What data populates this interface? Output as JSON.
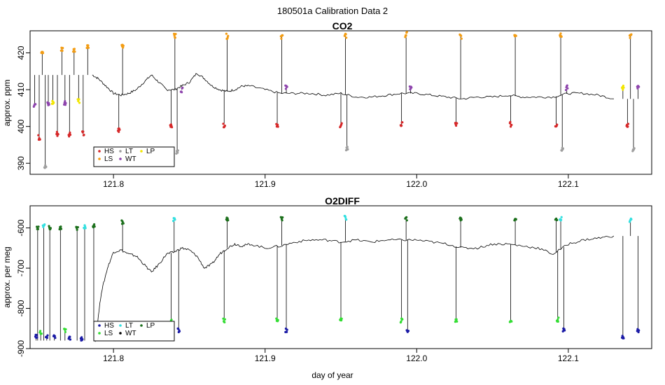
{
  "figure": {
    "title": "180501a   Calibration Data 2",
    "xlabel": "day of year"
  },
  "chart_data": [
    {
      "type": "line",
      "title": "CO2",
      "xlabel": "",
      "ylabel": "approx. ppm",
      "xlim": [
        121.745,
        122.155
      ],
      "ylim": [
        387,
        426
      ],
      "xticks": [
        121.8,
        121.9,
        122.0,
        122.1
      ],
      "yticks": [
        390,
        400,
        410,
        420
      ],
      "legend": {
        "placement": "bottom-left",
        "entries": [
          {
            "name": "HS",
            "color": "#d62728"
          },
          {
            "name": "LT",
            "color": "#9e9e9e"
          },
          {
            "name": "LP",
            "color": "#f2e600"
          },
          {
            "name": "LS",
            "color": "#f39c12"
          },
          {
            "name": "WT",
            "color": "#8e44ad"
          }
        ]
      },
      "baseline": {
        "x": [
          121.786,
          121.79,
          121.795,
          121.8,
          121.805,
          121.81,
          121.815,
          121.82,
          121.825,
          121.83,
          121.835,
          121.84,
          121.845,
          121.85,
          121.855,
          121.86,
          121.865,
          121.87,
          121.875,
          121.88,
          121.885,
          121.89,
          121.9,
          121.91,
          121.92,
          121.93,
          121.94,
          121.95,
          121.96,
          121.97,
          121.98,
          121.99,
          122.0,
          122.01,
          122.02,
          122.03,
          122.04,
          122.05,
          122.06,
          122.07,
          122.08,
          122.09,
          122.1,
          122.11,
          122.12,
          122.13
        ],
        "y": [
          414,
          413,
          411,
          409,
          408.5,
          409,
          410,
          412,
          414,
          412,
          410,
          410,
          411,
          412,
          414.5,
          413,
          411,
          410,
          409.5,
          410,
          411,
          411,
          410,
          409,
          409,
          409,
          408.5,
          409,
          408,
          408,
          408.5,
          409,
          409,
          408.5,
          408,
          407.5,
          408,
          408,
          408.5,
          408,
          408,
          408,
          409,
          409,
          408.5,
          407.5
        ]
      },
      "calibrations": [
        {
          "type": "WT",
          "x": 121.748,
          "y": 406
        },
        {
          "type": "HS",
          "x": 121.751,
          "y": 397
        },
        {
          "type": "LS",
          "x": 121.753,
          "y": 420.5
        },
        {
          "type": "LT",
          "x": 121.755,
          "y": 389
        },
        {
          "type": "WT",
          "x": 121.757,
          "y": 406
        },
        {
          "type": "LP",
          "x": 121.76,
          "y": 406.5
        },
        {
          "type": "HS",
          "x": 121.763,
          "y": 398
        },
        {
          "type": "LS",
          "x": 121.766,
          "y": 421
        },
        {
          "type": "WT",
          "x": 121.768,
          "y": 406.5
        },
        {
          "type": "HS",
          "x": 121.771,
          "y": 398
        },
        {
          "type": "LS",
          "x": 121.774,
          "y": 421
        },
        {
          "type": "LP",
          "x": 121.777,
          "y": 407
        },
        {
          "type": "HS",
          "x": 121.78,
          "y": 398
        },
        {
          "type": "LS",
          "x": 121.783,
          "y": 421.5
        },
        {
          "type": "HS",
          "x": 121.8035,
          "y": 399
        },
        {
          "type": "LS",
          "x": 121.806,
          "y": 422
        },
        {
          "type": "HS",
          "x": 121.838,
          "y": 400.5
        },
        {
          "type": "LS",
          "x": 121.8405,
          "y": 424.5
        },
        {
          "type": "LT",
          "x": 121.842,
          "y": 393
        },
        {
          "type": "WT",
          "x": 121.845,
          "y": 410
        },
        {
          "type": "HS",
          "x": 121.873,
          "y": 400.5
        },
        {
          "type": "LS",
          "x": 121.875,
          "y": 424.5
        },
        {
          "type": "HS",
          "x": 121.908,
          "y": 400.5
        },
        {
          "type": "LS",
          "x": 121.911,
          "y": 424.5
        },
        {
          "type": "WT",
          "x": 121.914,
          "y": 410.5
        },
        {
          "type": "HS",
          "x": 121.95,
          "y": 400.5
        },
        {
          "type": "LS",
          "x": 121.953,
          "y": 424.5
        },
        {
          "type": "LT",
          "x": 121.954,
          "y": 394
        },
        {
          "type": "HS",
          "x": 121.99,
          "y": 400.5
        },
        {
          "type": "LS",
          "x": 121.993,
          "y": 425
        },
        {
          "type": "WT",
          "x": 121.996,
          "y": 410.5
        },
        {
          "type": "HS",
          "x": 122.026,
          "y": 400.5
        },
        {
          "type": "LS",
          "x": 122.029,
          "y": 424.5
        },
        {
          "type": "HS",
          "x": 122.062,
          "y": 400.5
        },
        {
          "type": "LS",
          "x": 122.065,
          "y": 425
        },
        {
          "type": "HS",
          "x": 122.092,
          "y": 400.5
        },
        {
          "type": "LS",
          "x": 122.095,
          "y": 425
        },
        {
          "type": "LT",
          "x": 122.096,
          "y": 394
        },
        {
          "type": "WT",
          "x": 122.099,
          "y": 410.5
        },
        {
          "type": "LP",
          "x": 122.136,
          "y": 410.5
        },
        {
          "type": "HS",
          "x": 122.139,
          "y": 400.5
        },
        {
          "type": "LS",
          "x": 122.141,
          "y": 424.5
        },
        {
          "type": "LT",
          "x": 122.143,
          "y": 393.5
        },
        {
          "type": "WT",
          "x": 122.146,
          "y": 410.5
        }
      ]
    },
    {
      "type": "line",
      "title": "O2DIFF",
      "xlabel": "day of year",
      "ylabel": "approx. per meg",
      "xlim": [
        121.745,
        122.155
      ],
      "ylim": [
        -900,
        -545
      ],
      "xticks": [
        121.8,
        121.9,
        122.0,
        122.1
      ],
      "yticks": [
        -900,
        -800,
        -700,
        -600
      ],
      "legend": {
        "placement": "bottom-left",
        "entries": [
          {
            "name": "HS",
            "color": "#1a1aa6"
          },
          {
            "name": "LT",
            "color": "#33e0e0"
          },
          {
            "name": "LP",
            "color": "#1b6f1b"
          },
          {
            "name": "LS",
            "color": "#33dd33"
          },
          {
            "name": "WT",
            "color": "#000000"
          }
        ]
      },
      "baseline": {
        "x": [
          121.788,
          121.792,
          121.796,
          121.8,
          121.805,
          121.81,
          121.815,
          121.82,
          121.825,
          121.83,
          121.835,
          121.84,
          121.845,
          121.85,
          121.855,
          121.86,
          121.865,
          121.87,
          121.875,
          121.88,
          121.885,
          121.89,
          121.9,
          121.91,
          121.92,
          121.93,
          121.94,
          121.95,
          121.96,
          121.97,
          121.98,
          121.99,
          122.0,
          122.01,
          122.02,
          122.03,
          122.04,
          122.05,
          122.06,
          122.07,
          122.08,
          122.09,
          122.1,
          122.11,
          122.12,
          122.13
        ],
        "y": [
          -880,
          -760,
          -700,
          -660,
          -655,
          -665,
          -670,
          -690,
          -710,
          -690,
          -665,
          -660,
          -650,
          -655,
          -670,
          -700,
          -690,
          -665,
          -650,
          -640,
          -645,
          -640,
          -650,
          -645,
          -635,
          -630,
          -630,
          -635,
          -630,
          -635,
          -630,
          -630,
          -630,
          -635,
          -640,
          -650,
          -650,
          -640,
          -640,
          -645,
          -650,
          -665,
          -640,
          -630,
          -625,
          -620
        ]
      },
      "calibrations": [
        {
          "type": "HS",
          "x": 121.749,
          "y": -870
        },
        {
          "type": "LP",
          "x": 121.75,
          "y": -600
        },
        {
          "type": "LS",
          "x": 121.752,
          "y": -860
        },
        {
          "type": "LT",
          "x": 121.754,
          "y": -595
        },
        {
          "type": "HS",
          "x": 121.756,
          "y": -872
        },
        {
          "type": "LP",
          "x": 121.758,
          "y": -600
        },
        {
          "type": "HS",
          "x": 121.761,
          "y": -870
        },
        {
          "type": "LP",
          "x": 121.765,
          "y": -600
        },
        {
          "type": "LS",
          "x": 121.768,
          "y": -855
        },
        {
          "type": "HS",
          "x": 121.771,
          "y": -875
        },
        {
          "type": "LP",
          "x": 121.776,
          "y": -600
        },
        {
          "type": "HS",
          "x": 121.779,
          "y": -875
        },
        {
          "type": "LT",
          "x": 121.781,
          "y": -598
        },
        {
          "type": "LP",
          "x": 121.787,
          "y": -595
        },
        {
          "type": "LP",
          "x": 121.806,
          "y": -585
        },
        {
          "type": "LS",
          "x": 121.838,
          "y": -832
        },
        {
          "type": "LT",
          "x": 121.84,
          "y": -578
        },
        {
          "type": "HS",
          "x": 121.843,
          "y": -855
        },
        {
          "type": "LP",
          "x": 121.875,
          "y": -578
        },
        {
          "type": "LS",
          "x": 121.873,
          "y": -830
        },
        {
          "type": "LP",
          "x": 121.911,
          "y": -578
        },
        {
          "type": "LS",
          "x": 121.908,
          "y": -828
        },
        {
          "type": "HS",
          "x": 121.914,
          "y": -855
        },
        {
          "type": "LT",
          "x": 121.953,
          "y": -575
        },
        {
          "type": "LS",
          "x": 121.95,
          "y": -828
        },
        {
          "type": "LP",
          "x": 121.993,
          "y": -578
        },
        {
          "type": "LS",
          "x": 121.99,
          "y": -830
        },
        {
          "type": "HS",
          "x": 121.994,
          "y": -855
        },
        {
          "type": "LP",
          "x": 122.029,
          "y": -578
        },
        {
          "type": "LS",
          "x": 122.026,
          "y": -830
        },
        {
          "type": "LP",
          "x": 122.065,
          "y": -578
        },
        {
          "type": "LS",
          "x": 122.062,
          "y": -830
        },
        {
          "type": "LP",
          "x": 122.092,
          "y": -580
        },
        {
          "type": "LT",
          "x": 122.095,
          "y": -578
        },
        {
          "type": "LS",
          "x": 122.093,
          "y": -828
        },
        {
          "type": "HS",
          "x": 122.097,
          "y": -855
        },
        {
          "type": "HS",
          "x": 122.136,
          "y": -870
        },
        {
          "type": "LT",
          "x": 122.141,
          "y": -580
        },
        {
          "type": "HS",
          "x": 122.146,
          "y": -855
        }
      ]
    }
  ]
}
